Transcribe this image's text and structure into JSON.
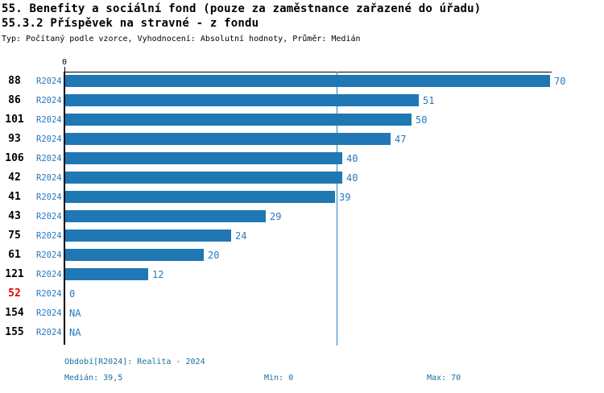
{
  "header": {
    "title": "55. Benefity a sociální fond (pouze za zaměstnance zařazené do úřadu)",
    "subtitle": "55.3.2 Příspěvek na stravné - z fondu",
    "meta": "Typ: Počítaný podle vzorce, Vyhodnocení: Absolutní hodnoty, Průměr: Medián"
  },
  "chart_data": {
    "type": "bar",
    "orientation": "horizontal",
    "title": "55.3.2 Příspěvek na stravné - z fondu",
    "categories": [
      "88",
      "86",
      "101",
      "93",
      "106",
      "42",
      "41",
      "43",
      "75",
      "61",
      "121",
      "52",
      "154",
      "155"
    ],
    "series": [
      {
        "name": "R2024",
        "values": [
          70,
          51,
          50,
          47,
          40,
          40,
          39,
          29,
          24,
          20,
          12,
          0,
          null,
          null
        ],
        "value_labels": [
          "70",
          "51",
          "50",
          "47",
          "40",
          "40",
          "39",
          "29",
          "24",
          "20",
          "12",
          "0",
          "NA",
          "NA"
        ]
      }
    ],
    "row_series_label": "R2024",
    "highlighted_categories": [
      "52"
    ],
    "xlim": [
      0,
      70
    ],
    "x_tick_labels": [
      "0"
    ],
    "median_value": 39.5,
    "min_value": 0,
    "max_value": 70,
    "grid": false,
    "legend": false
  },
  "footer": {
    "period": "Období[R2024]: Realita - 2024",
    "median": "Medián: 39,5",
    "min": "Min: 0",
    "max": "Max: 70"
  },
  "colors": {
    "bar": "#1f77b4",
    "link": "#2878bd",
    "median_line": "#2e7fbe",
    "footer_text": "#1a6f9e",
    "highlight_id": "#e00000",
    "axis": "#000000"
  }
}
